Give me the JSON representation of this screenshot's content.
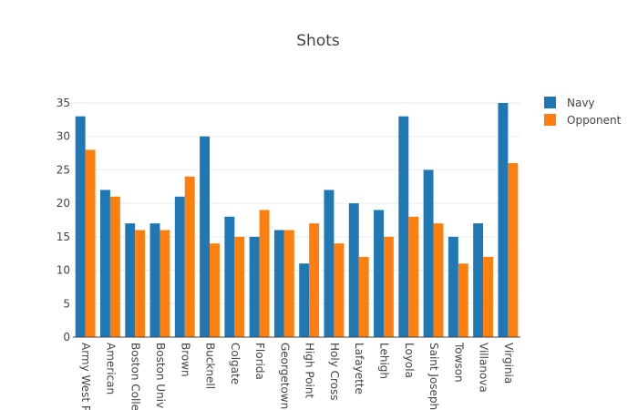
{
  "chart_data": {
    "type": "bar",
    "title": "Shots",
    "xlabel": "",
    "ylabel": "",
    "ylim": [
      0,
      35
    ],
    "yticks": [
      0,
      5,
      10,
      15,
      20,
      25,
      30,
      35
    ],
    "grid": true,
    "legend_position": "top-right",
    "categories": [
      "Army West P",
      "American",
      "Boston Colle",
      "Boston Univ",
      "Brown",
      "Bucknell",
      "Colgate",
      "Florida",
      "Georgetown",
      "High Point",
      "Holy Cross",
      "Lafayette",
      "Lehigh",
      "Loyola",
      "Saint Joseph",
      "Towson",
      "Villanova",
      "Virginia"
    ],
    "series": [
      {
        "name": "Navy",
        "color": "#1f77b4",
        "values": [
          33,
          22,
          17,
          17,
          21,
          30,
          18,
          15,
          16,
          11,
          22,
          20,
          19,
          33,
          25,
          15,
          17,
          35
        ]
      },
      {
        "name": "Opponent",
        "color": "#ff7f0e",
        "values": [
          28,
          21,
          16,
          16,
          24,
          14,
          15,
          19,
          16,
          17,
          14,
          12,
          15,
          18,
          17,
          11,
          12,
          26
        ]
      }
    ]
  }
}
